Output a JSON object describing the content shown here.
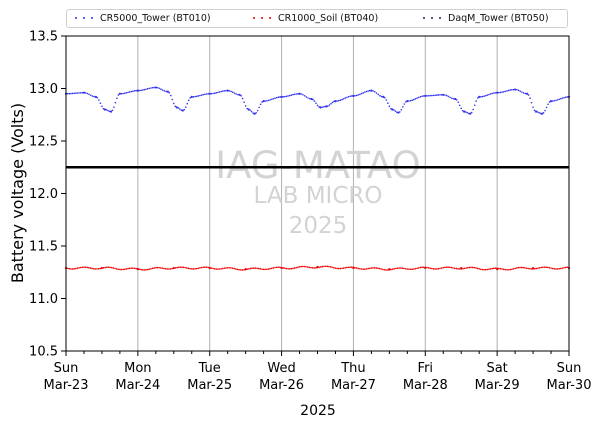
{
  "chart_data": {
    "type": "scatter",
    "title": "",
    "xlabel": "2025",
    "ylabel": "Battery voltage (Volts)",
    "ylim": [
      10.5,
      13.5
    ],
    "yticks": [
      "10.5",
      "11.0",
      "11.5",
      "12.0",
      "12.5",
      "13.0",
      "13.5"
    ],
    "xlim": [
      "2025-03-23",
      "2025-03-30"
    ],
    "xticks": [
      {
        "day": "Sun",
        "date": "Mar-23"
      },
      {
        "day": "Mon",
        "date": "Mar-24"
      },
      {
        "day": "Tue",
        "date": "Mar-25"
      },
      {
        "day": "Wed",
        "date": "Mar-26"
      },
      {
        "day": "Thu",
        "date": "Mar-27"
      },
      {
        "day": "Fri",
        "date": "Mar-28"
      },
      {
        "day": "Sat",
        "date": "Mar-29"
      },
      {
        "day": "Sun",
        "date": "Mar-30"
      }
    ],
    "grid": "vertical at day ticks",
    "legend_position": "top",
    "reference_line": {
      "y": 12.25,
      "color": "#000000"
    },
    "watermark": [
      "IAG-MATAO",
      "LAB MICRO",
      "2025"
    ],
    "series": [
      {
        "name": "CR5000_Tower (BT010)",
        "color": "#3333ee",
        "x": [
          "2025-03-23 00:00",
          "2025-03-23 06:00",
          "2025-03-23 10:00",
          "2025-03-23 13:00",
          "2025-03-23 15:00",
          "2025-03-23 18:00",
          "2025-03-24 00:00",
          "2025-03-24 06:00",
          "2025-03-24 10:00",
          "2025-03-24 13:00",
          "2025-03-24 15:00",
          "2025-03-24 18:00",
          "2025-03-25 00:00",
          "2025-03-25 06:00",
          "2025-03-25 10:00",
          "2025-03-25 13:00",
          "2025-03-25 15:00",
          "2025-03-25 18:00",
          "2025-03-26 00:00",
          "2025-03-26 06:00",
          "2025-03-26 10:00",
          "2025-03-26 13:00",
          "2025-03-26 15:00",
          "2025-03-26 18:00",
          "2025-03-27 00:00",
          "2025-03-27 06:00",
          "2025-03-27 10:00",
          "2025-03-27 13:00",
          "2025-03-27 15:00",
          "2025-03-27 18:00",
          "2025-03-28 00:00",
          "2025-03-28 06:00",
          "2025-03-28 10:00",
          "2025-03-28 13:00",
          "2025-03-28 15:00",
          "2025-03-28 18:00",
          "2025-03-29 00:00",
          "2025-03-29 06:00",
          "2025-03-29 10:00",
          "2025-03-29 13:00",
          "2025-03-29 15:00",
          "2025-03-29 18:00",
          "2025-03-30 00:00"
        ],
        "y": [
          12.95,
          12.96,
          12.92,
          12.8,
          12.78,
          12.95,
          12.98,
          13.01,
          12.97,
          12.82,
          12.79,
          12.92,
          12.95,
          12.98,
          12.94,
          12.8,
          12.76,
          12.88,
          12.92,
          12.95,
          12.9,
          12.82,
          12.83,
          12.88,
          12.93,
          12.98,
          12.92,
          12.8,
          12.77,
          12.88,
          12.93,
          12.94,
          12.9,
          12.78,
          12.76,
          12.92,
          12.96,
          12.99,
          12.95,
          12.78,
          12.76,
          12.88,
          12.92
        ]
      },
      {
        "name": "CR1000_Soil (BT040)",
        "color": "#ee0000",
        "x": [
          "2025-03-23 00:00",
          "2025-03-23 12:00",
          "2025-03-24 00:00",
          "2025-03-24 12:00",
          "2025-03-25 00:00",
          "2025-03-25 12:00",
          "2025-03-26 00:00",
          "2025-03-26 12:00",
          "2025-03-27 00:00",
          "2025-03-27 12:00",
          "2025-03-28 00:00",
          "2025-03-28 12:00",
          "2025-03-29 00:00",
          "2025-03-29 12:00",
          "2025-03-30 00:00"
        ],
        "y": [
          11.29,
          11.29,
          11.28,
          11.29,
          11.29,
          11.28,
          11.29,
          11.3,
          11.29,
          11.28,
          11.29,
          11.29,
          11.28,
          11.29,
          11.29
        ]
      },
      {
        "name": "DaqM_Tower (BT050)",
        "color": "#222255",
        "x": [],
        "y": []
      }
    ]
  }
}
